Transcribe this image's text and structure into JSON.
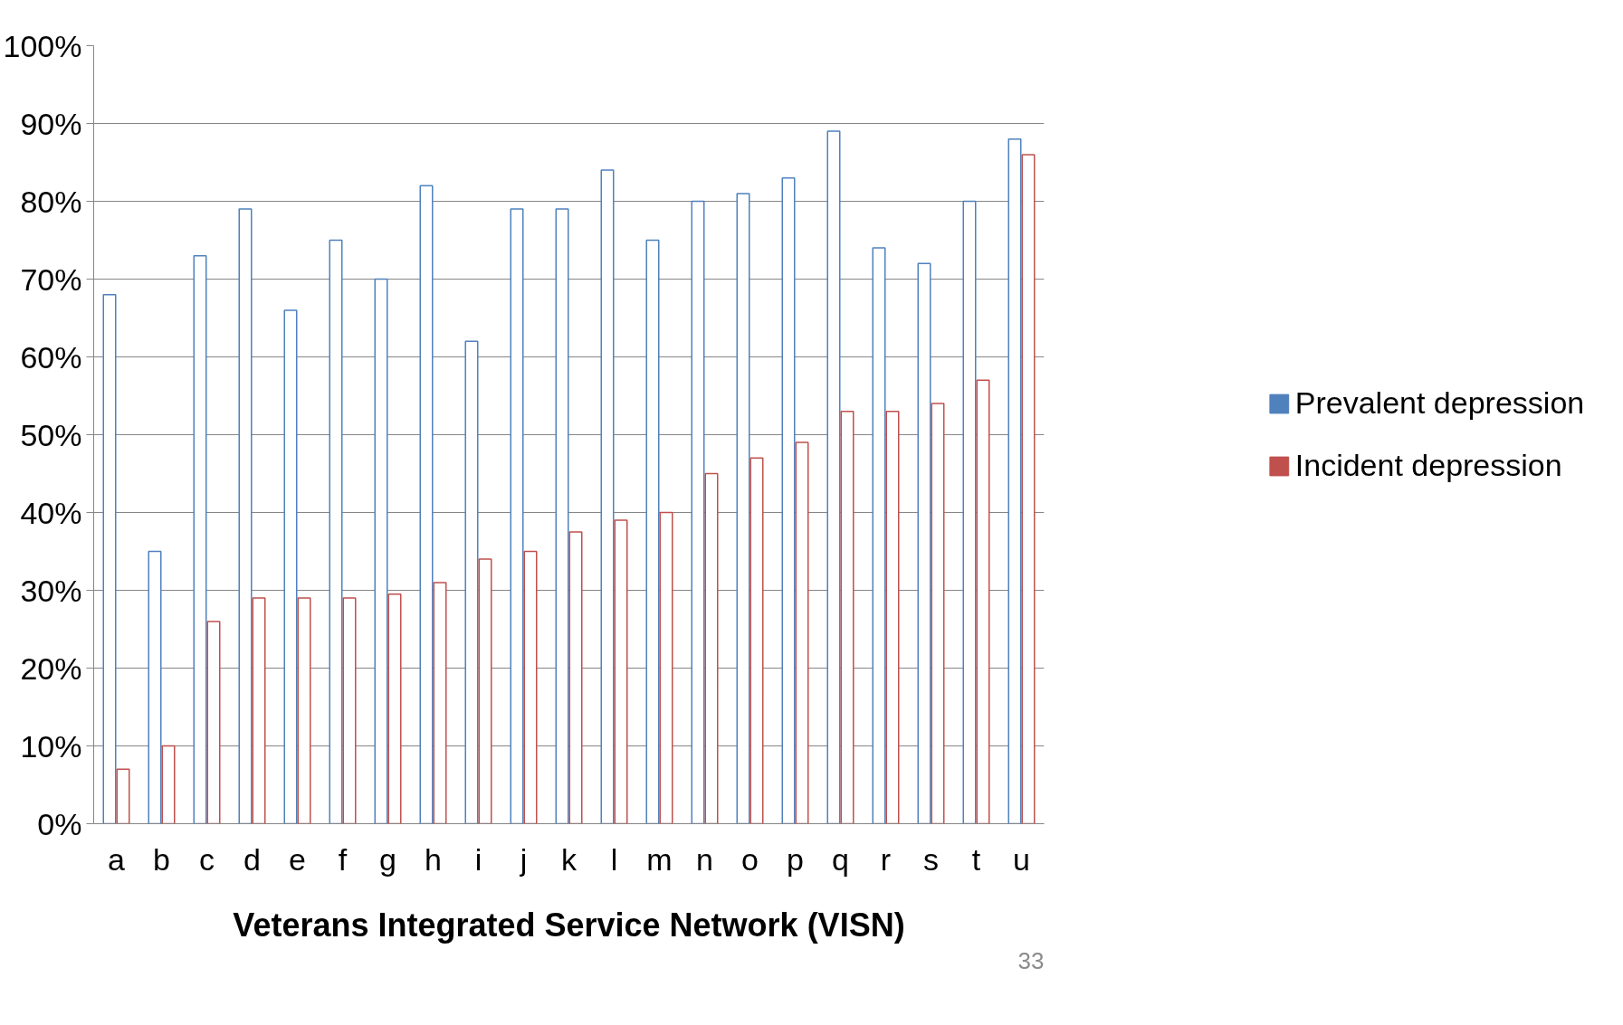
{
  "chart_data": {
    "type": "bar",
    "xlabel": "Veterans Integrated Service Network (VISN)",
    "categories": [
      "a",
      "b",
      "c",
      "d",
      "e",
      "f",
      "g",
      "h",
      "i",
      "j",
      "k",
      "l",
      "m",
      "n",
      "o",
      "p",
      "q",
      "r",
      "s",
      "t",
      "u"
    ],
    "series": [
      {
        "name": "Prevalent depression",
        "color": "#4f81bd",
        "values": [
          68,
          35,
          73,
          79,
          66,
          75,
          70,
          82,
          62,
          79,
          79,
          84,
          75,
          80,
          81,
          83,
          89,
          74,
          72,
          80,
          88
        ]
      },
      {
        "name": "Incident depression",
        "color": "#c0504d",
        "values": [
          7,
          10,
          26,
          29,
          29,
          29,
          29.5,
          31,
          34,
          35,
          37.5,
          39,
          40,
          45,
          47,
          49,
          53,
          53,
          54,
          57,
          86
        ]
      }
    ],
    "ylim": [
      0,
      100
    ],
    "yticks": [
      {
        "value": 0,
        "label": "0%"
      },
      {
        "value": 10,
        "label": "10%"
      },
      {
        "value": 20,
        "label": "20%"
      },
      {
        "value": 30,
        "label": "30%"
      },
      {
        "value": 40,
        "label": "40%"
      },
      {
        "value": 50,
        "label": "50%"
      },
      {
        "value": 60,
        "label": "60%"
      },
      {
        "value": 70,
        "label": "70%"
      },
      {
        "value": 80,
        "label": "80%"
      },
      {
        "value": 90,
        "label": "90%"
      },
      {
        "value": 100,
        "label": "100%"
      }
    ],
    "grid": "y",
    "legend": "right",
    "annotations": [
      "33"
    ]
  }
}
